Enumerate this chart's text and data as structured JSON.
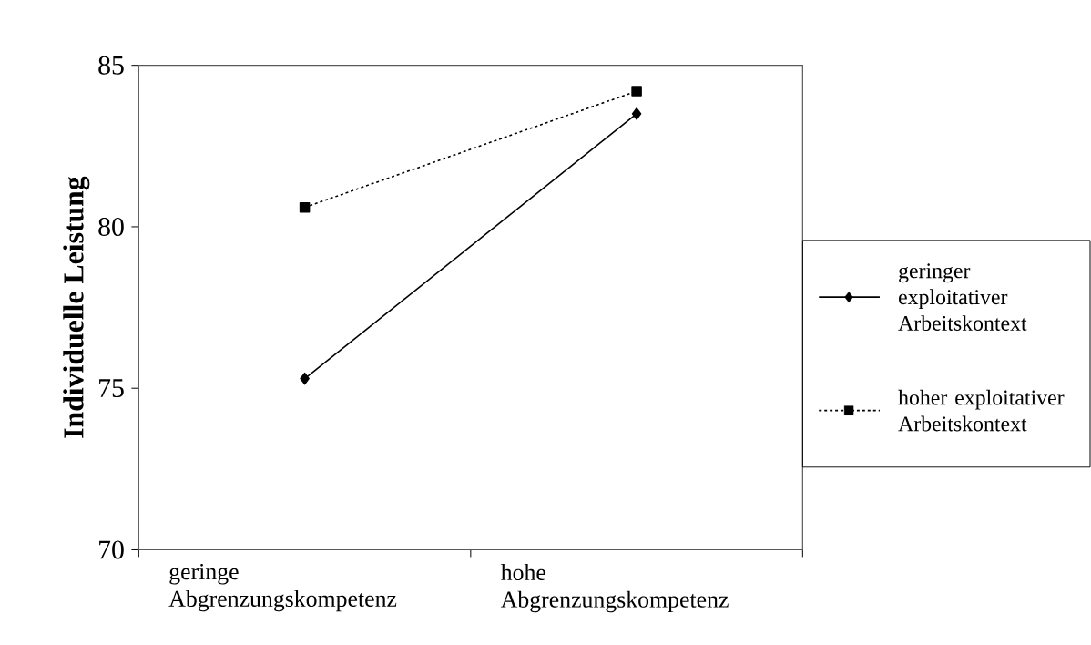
{
  "chart_data": {
    "type": "line",
    "ylabel": "Individuelle Leistung",
    "categories": [
      "geringe Abgrenzungskompetenz",
      "hohe Abgrenzungskompetenz"
    ],
    "ylim": [
      70,
      85
    ],
    "yticks": [
      70,
      75,
      80,
      85
    ],
    "legend": "right",
    "series": [
      {
        "name": "geringer exploitativer Arbeitskontext",
        "color": "#000000",
        "values": [
          75.3,
          83.5
        ],
        "marker": "diamond",
        "line_style": "solid"
      },
      {
        "name": "hoher exploitativer Arbeitskontext",
        "color": "#000000",
        "values": [
          80.6,
          84.2
        ],
        "marker": "square",
        "line_style": "dashed"
      }
    ]
  }
}
